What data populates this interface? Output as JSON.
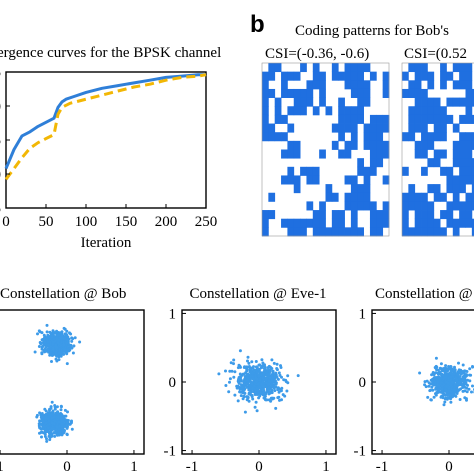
{
  "panel_b_letter": "b",
  "chart_data": [
    {
      "type": "line",
      "title": "ergence curves for the BPSK channel",
      "xlabel": "Iteration",
      "ylabel": "",
      "xlim": [
        0,
        250
      ],
      "xticks": [
        "0",
        "50",
        "100",
        "150",
        "200",
        "250"
      ],
      "ylim": [
        -5,
        5
      ],
      "yticks": [
        "5",
        "0",
        "5",
        "0",
        "5"
      ],
      "grid": false,
      "series": [
        {
          "style": "solid",
          "color": "#2f7fd8",
          "x": [
            0,
            10,
            20,
            30,
            40,
            50,
            60,
            65,
            70,
            75,
            85,
            100,
            120,
            140,
            160,
            180,
            200,
            220,
            240,
            250
          ],
          "y": [
            -2.1,
            -0.7,
            0.3,
            0.6,
            1.0,
            1.3,
            1.6,
            2.4,
            2.8,
            3.0,
            3.2,
            3.5,
            3.8,
            4.0,
            4.2,
            4.4,
            4.6,
            4.7,
            4.8,
            4.8
          ]
        },
        {
          "style": "dashed",
          "color": "#f2b705",
          "x": [
            0,
            10,
            20,
            30,
            40,
            50,
            60,
            65,
            70,
            80,
            100,
            120,
            140,
            160,
            180,
            200,
            220,
            240,
            250
          ],
          "y": [
            -2.9,
            -2.1,
            -1.3,
            -0.6,
            -0.2,
            0.1,
            0.4,
            1.9,
            2.4,
            2.7,
            3.0,
            3.3,
            3.6,
            3.9,
            4.1,
            4.4,
            4.6,
            4.7,
            4.8
          ]
        }
      ]
    },
    {
      "type": "heatmap",
      "title": "Coding patterns for Bob's",
      "subtitles": [
        "CSI=(-0.36, -0.6)",
        "CSI=(0.52"
      ],
      "colors": {
        "on": "#1f6fe0",
        "off": "#ffffff"
      },
      "grid_size": 20
    },
    {
      "type": "scatter",
      "title": "Constellation @ Bob",
      "xticks": [
        "1",
        "0",
        "1"
      ],
      "yticks": [],
      "color": "#3d9be9",
      "clusters": [
        {
          "cx": -0.15,
          "cy": 0.55,
          "sx": 0.1,
          "sy": 0.08
        },
        {
          "cx": -0.2,
          "cy": -0.6,
          "sx": 0.1,
          "sy": 0.08
        }
      ]
    },
    {
      "type": "scatter",
      "title": "Constellation @ Eve-1",
      "xticks": [
        "-1",
        "0",
        "1"
      ],
      "yticks": [
        "1",
        "0",
        "-1"
      ],
      "color": "#3d9be9",
      "clusters": [
        {
          "cx": 0.0,
          "cy": 0.0,
          "sx": 0.18,
          "sy": 0.13
        }
      ]
    },
    {
      "type": "scatter",
      "title": "Constellation @",
      "xticks": [
        "-1",
        "0"
      ],
      "yticks": [
        "1",
        "0",
        "-1"
      ],
      "color": "#3d9be9",
      "clusters": [
        {
          "cx": 0.0,
          "cy": 0.0,
          "sx": 0.14,
          "sy": 0.11
        }
      ]
    }
  ]
}
